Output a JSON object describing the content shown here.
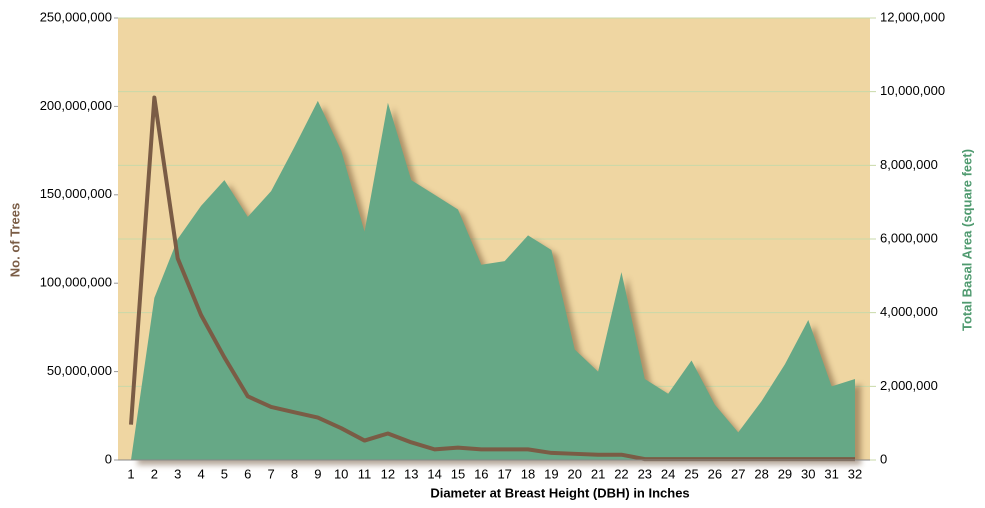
{
  "chart_data": {
    "type": "line",
    "x_label": "Diameter at Breast Height (DBH) in Inches",
    "y_label": "No. of Trees",
    "y2_label": "Total Basal Area (square feet)",
    "categories": [
      "1",
      "2",
      "3",
      "4",
      "5",
      "6",
      "7",
      "8",
      "9",
      "10",
      "11",
      "12",
      "13",
      "14",
      "15",
      "16",
      "17",
      "18",
      "19",
      "20",
      "21",
      "22",
      "23",
      "24",
      "25",
      "26",
      "27",
      "28",
      "29",
      "30",
      "31",
      "32"
    ],
    "series": [
      {
        "name": "No. of Trees",
        "type": "line",
        "color": "#7a5c45",
        "values": [
          20000000,
          205000000,
          114000000,
          82000000,
          58000000,
          36000000,
          30000000,
          27000000,
          24000000,
          18000000,
          11000000,
          15000000,
          10000000,
          6000000,
          7000000,
          6000000,
          6000000,
          6000000,
          4000000,
          3500000,
          3000000,
          3000000,
          500000,
          500000,
          500000,
          500000,
          500000,
          500000,
          500000,
          500000,
          500000,
          500000
        ]
      },
      {
        "name": "Total Basal Area (square feet)",
        "type": "area",
        "axis": "y2",
        "color": "#66a886",
        "values": [
          0,
          4400000,
          6000000,
          6900000,
          7600000,
          6600000,
          7300000,
          8500000,
          9750000,
          8400000,
          6200000,
          9700000,
          7600000,
          7200000,
          6800000,
          5300000,
          5400000,
          6100000,
          5700000,
          3000000,
          2400000,
          5100000,
          2200000,
          1800000,
          2700000,
          1500000,
          750000,
          1600000,
          2600000,
          3800000,
          2000000,
          2200000
        ]
      }
    ],
    "ylim": [
      0,
      250000000
    ],
    "yticks": [
      {
        "value": 0,
        "label": "0"
      },
      {
        "value": 50000000,
        "label": "50,000,000"
      },
      {
        "value": 100000000,
        "label": "100,000,000"
      },
      {
        "value": 150000000,
        "label": "150,000,000"
      },
      {
        "value": 200000000,
        "label": "200,000,000"
      },
      {
        "value": 250000000,
        "label": "250,000,000"
      }
    ],
    "y2lim": [
      0,
      12000000
    ],
    "y2ticks": [
      {
        "value": 0,
        "label": "0"
      },
      {
        "value": 2000000,
        "label": "2,000,000"
      },
      {
        "value": 4000000,
        "label": "4,000,000"
      },
      {
        "value": 6000000,
        "label": "6,000,000"
      },
      {
        "value": 8000000,
        "label": "8,000,000"
      },
      {
        "value": 10000000,
        "label": "10,000,000"
      },
      {
        "value": 12000000,
        "label": "12,000,000"
      }
    ],
    "grid": true,
    "background": "#efd6a2"
  }
}
